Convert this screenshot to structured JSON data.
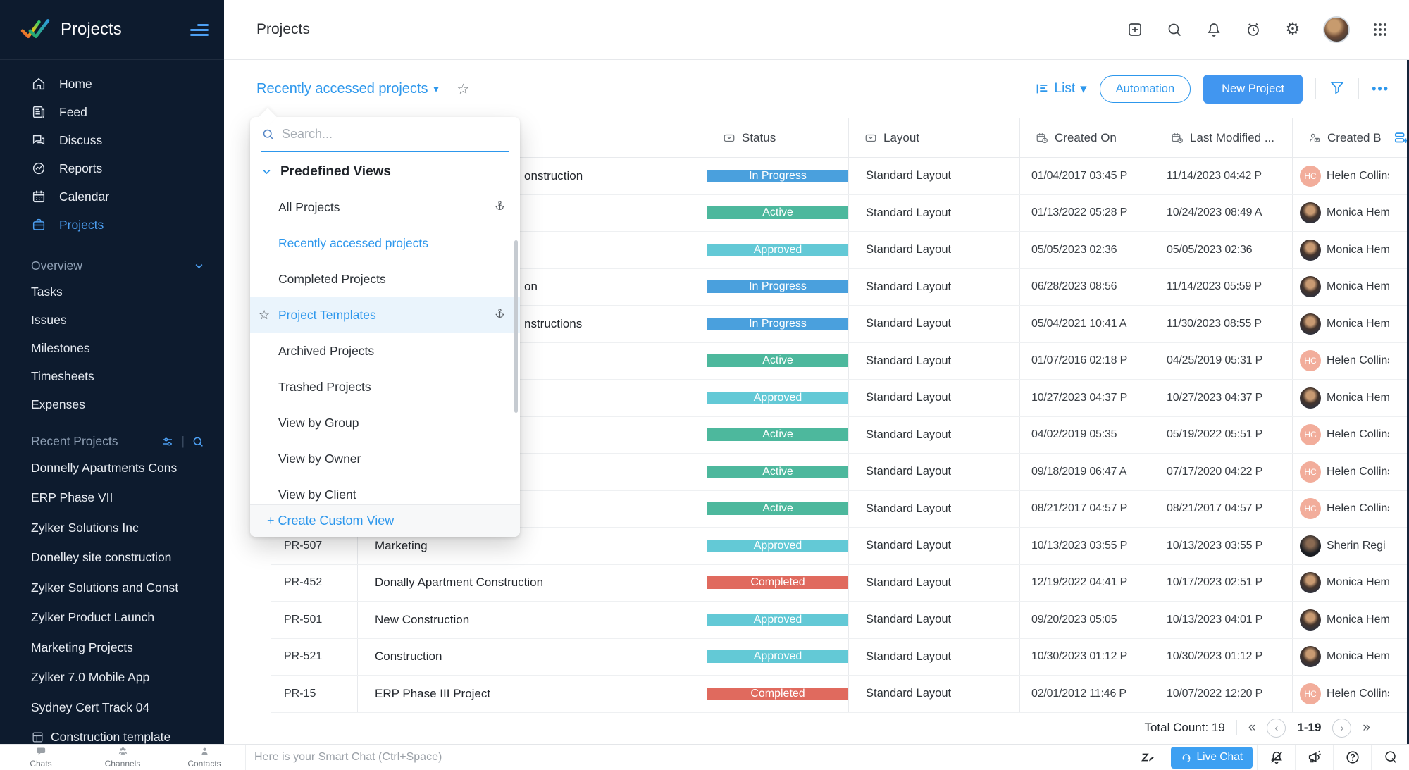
{
  "app": {
    "logo_text": "Projects",
    "page_title": "Projects"
  },
  "sidebar": {
    "nav": [
      {
        "label": "Home",
        "icon": "home-icon",
        "active": false
      },
      {
        "label": "Feed",
        "icon": "feed-icon",
        "active": false
      },
      {
        "label": "Discuss",
        "icon": "discuss-icon",
        "active": false
      },
      {
        "label": "Reports",
        "icon": "reports-icon",
        "active": false
      },
      {
        "label": "Calendar",
        "icon": "calendar-icon",
        "active": false
      },
      {
        "label": "Projects",
        "icon": "projects-icon",
        "active": true
      }
    ],
    "overview": {
      "label": "Overview",
      "items": [
        "Tasks",
        "Issues",
        "Milestones",
        "Timesheets",
        "Expenses"
      ]
    },
    "recent": {
      "label": "Recent Projects",
      "items": [
        {
          "label": "Donnelly Apartments Cons"
        },
        {
          "label": "ERP Phase VII"
        },
        {
          "label": "Zylker Solutions Inc"
        },
        {
          "label": "Donelley site construction"
        },
        {
          "label": "Zylker Solutions and Const"
        },
        {
          "label": "Zylker Product Launch"
        },
        {
          "label": "Marketing Projects"
        },
        {
          "label": "Zylker 7.0 Mobile App"
        },
        {
          "label": "Sydney Cert Track 04"
        },
        {
          "label": "Construction template",
          "icon": "template-icon"
        }
      ]
    }
  },
  "toolbar": {
    "view_selector": "Recently accessed projects",
    "view_mode": "List",
    "automation_label": "Automation",
    "new_project_label": "New Project"
  },
  "dropdown": {
    "search_placeholder": "Search...",
    "group_label": "Predefined Views",
    "items": [
      {
        "label": "All Projects",
        "anchor": true
      },
      {
        "label": "Recently accessed projects",
        "blue": true
      },
      {
        "label": "Completed Projects"
      },
      {
        "label": "Project Templates",
        "blue": true,
        "highlighted": true,
        "star": true,
        "anchor": true
      },
      {
        "label": "Archived Projects"
      },
      {
        "label": "Trashed Projects"
      },
      {
        "label": "View by Group"
      },
      {
        "label": "View by Owner"
      },
      {
        "label": "View by Client"
      }
    ],
    "footer_label": "+ Create Custom View"
  },
  "table": {
    "headers": [
      "Status",
      "Layout",
      "Created On",
      "Last Modified ...",
      "Created B"
    ],
    "rows": [
      {
        "id": "",
        "name": "onstruction",
        "offset": true,
        "status": "In Progress",
        "layout": "Standard Layout",
        "created": "01/04/2017 03:45 P",
        "modified": "11/14/2023 04:42 P",
        "user": "Helen Collins",
        "avatar": "initials",
        "initials": "HC"
      },
      {
        "id": "",
        "name": "",
        "offset": false,
        "status": "Active",
        "layout": "Standard Layout",
        "created": "01/13/2022 05:28 P",
        "modified": "10/24/2023 08:49 A",
        "user": "Monica Hem",
        "avatar": "photo-m",
        "initials": ""
      },
      {
        "id": "",
        "name": "",
        "offset": false,
        "status": "Approved",
        "layout": "Standard Layout",
        "created": "05/05/2023 02:36",
        "modified": "05/05/2023 02:36",
        "user": "Monica Hem",
        "avatar": "photo-m",
        "initials": ""
      },
      {
        "id": "",
        "name": "on",
        "offset": true,
        "status": "In Progress",
        "layout": "Standard Layout",
        "created": "06/28/2023 08:56",
        "modified": "11/14/2023 05:59 P",
        "user": "Monica Hem",
        "avatar": "photo-m",
        "initials": ""
      },
      {
        "id": "",
        "name": "nstructions",
        "offset": true,
        "status": "In Progress",
        "layout": "Standard Layout",
        "created": "05/04/2021 10:41 A",
        "modified": "11/30/2023 08:55 P",
        "user": "Monica Hem",
        "avatar": "photo-m",
        "initials": ""
      },
      {
        "id": "",
        "name": "",
        "offset": false,
        "status": "Active",
        "layout": "Standard Layout",
        "created": "01/07/2016 02:18 P",
        "modified": "04/25/2019 05:31 P",
        "user": "Helen Collins",
        "avatar": "initials",
        "initials": "HC"
      },
      {
        "id": "",
        "name": "",
        "offset": false,
        "status": "Approved",
        "layout": "Standard Layout",
        "created": "10/27/2023 04:37 P",
        "modified": "10/27/2023 04:37 P",
        "user": "Monica Hem",
        "avatar": "photo-m",
        "initials": ""
      },
      {
        "id": "",
        "name": "",
        "offset": false,
        "status": "Active",
        "layout": "Standard Layout",
        "created": "04/02/2019 05:35",
        "modified": "05/19/2022 05:51 P",
        "user": "Helen Collins",
        "avatar": "initials",
        "initials": "HC"
      },
      {
        "id": "",
        "name": "",
        "offset": false,
        "status": "Active",
        "layout": "Standard Layout",
        "created": "09/18/2019 06:47 A",
        "modified": "07/17/2020 04:22 P",
        "user": "Helen Collins",
        "avatar": "initials",
        "initials": "HC"
      },
      {
        "id": "",
        "name": "",
        "offset": false,
        "status": "Active",
        "layout": "Standard Layout",
        "created": "08/21/2017 04:57 P",
        "modified": "08/21/2017 04:57 P",
        "user": "Helen Collins",
        "avatar": "initials",
        "initials": "HC"
      },
      {
        "id": "PR-507",
        "name": "Marketing",
        "offset": false,
        "status": "Approved",
        "layout": "Standard Layout",
        "created": "10/13/2023 03:55 P",
        "modified": "10/13/2023 03:55 P",
        "user": "Sherin Regi S",
        "avatar": "photo-s",
        "initials": ""
      },
      {
        "id": "PR-452",
        "name": "Donally Apartment Construction",
        "offset": false,
        "status": "Completed",
        "layout": "Standard Layout",
        "created": "12/19/2022 04:41 P",
        "modified": "10/17/2023 02:51 P",
        "user": "Monica Hem",
        "avatar": "photo-m",
        "initials": ""
      },
      {
        "id": "PR-501",
        "name": "New Construction",
        "offset": false,
        "status": "Approved",
        "layout": "Standard Layout",
        "created": "09/20/2023 05:05",
        "modified": "10/13/2023 04:01 P",
        "user": "Monica Hem",
        "avatar": "photo-m",
        "initials": ""
      },
      {
        "id": "PR-521",
        "name": "Construction",
        "offset": false,
        "status": "Approved",
        "layout": "Standard Layout",
        "created": "10/30/2023 01:12 P",
        "modified": "10/30/2023 01:12 P",
        "user": "Monica Hem",
        "avatar": "photo-m",
        "initials": ""
      },
      {
        "id": "PR-15",
        "name": "ERP Phase III Project",
        "offset": false,
        "status": "Completed",
        "layout": "Standard Layout",
        "created": "02/01/2012 11:46 P",
        "modified": "10/07/2022 12:20 P",
        "user": "Helen Collins",
        "avatar": "initials",
        "initials": "HC"
      }
    ]
  },
  "pagination": {
    "total_label": "Total Count: 19",
    "range": "1-19"
  },
  "chatbar": {
    "tabs": [
      {
        "label": "Chats",
        "icon": "chat-bubble-icon"
      },
      {
        "label": "Channels",
        "icon": "people-group-icon"
      },
      {
        "label": "Contacts",
        "icon": "person-icon"
      }
    ],
    "placeholder": "Here is your Smart Chat (Ctrl+Space)",
    "live_chat_label": "Live Chat"
  },
  "colors": {
    "sidebar_bg": "#0d1b2e",
    "accent_blue": "#2d97ec",
    "button_blue": "#4196f0",
    "status": {
      "In Progress": "#4aa0dd",
      "Active": "#4db89d",
      "Approved": "#63c9d6",
      "Completed": "#e06a5e"
    }
  }
}
